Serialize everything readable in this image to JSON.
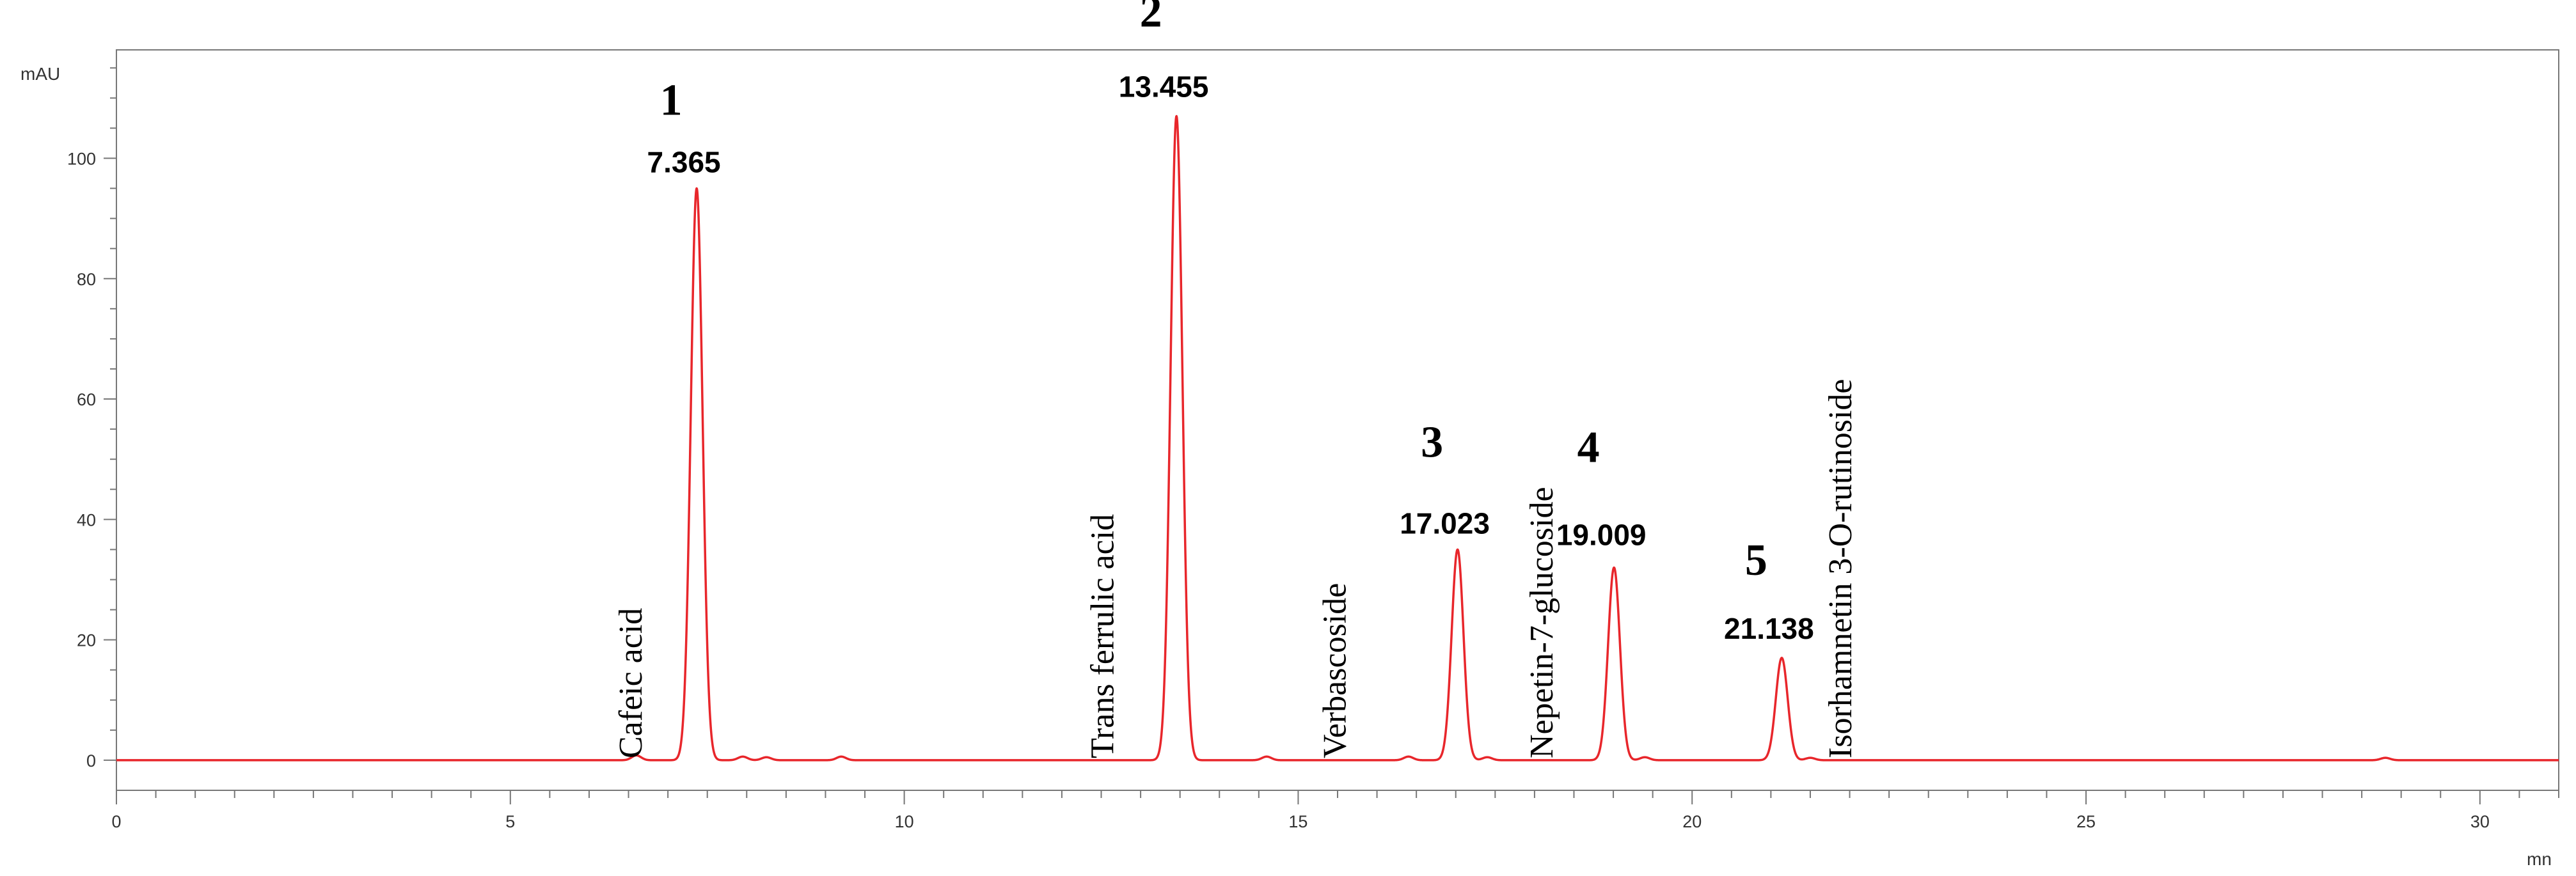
{
  "chart_data": {
    "type": "line",
    "ylabel": "mAU",
    "xlabel": "mn",
    "xlim": [
      0,
      31
    ],
    "ylim": [
      -5,
      118
    ],
    "x_ticks": [
      0,
      5,
      10,
      15,
      20,
      25,
      30
    ],
    "y_ticks": [
      0,
      20,
      40,
      60,
      80,
      100
    ],
    "x_tick_labels": [
      "0",
      "5",
      "10",
      "15",
      "20",
      "25",
      "30"
    ],
    "y_tick_labels": [
      "0",
      "20",
      "40",
      "60",
      "80",
      "100"
    ],
    "grid": false,
    "line_color": "#e8262b",
    "peaks": [
      {
        "number": "1",
        "rt_label": "7.365",
        "rt": 7.365,
        "height": 95,
        "compound": "Cafeic acid"
      },
      {
        "number": "2",
        "rt_label": "13.455",
        "rt": 13.455,
        "height": 107,
        "compound": "Trans ferrulic acid"
      },
      {
        "number": "3",
        "rt_label": "17.023",
        "rt": 17.023,
        "height": 35,
        "compound": "Verbascoside"
      },
      {
        "number": "4",
        "rt_label": "19.009",
        "rt": 19.009,
        "height": 32,
        "compound": "Nepetin-7-glucoside"
      },
      {
        "number": "5",
        "rt_label": "21.138",
        "rt": 21.138,
        "height": 17,
        "compound": "Isorhamnetin 3-O-rutinoside"
      }
    ],
    "minor_peaks": [
      {
        "rt": 6.6,
        "height": 0.8
      },
      {
        "rt": 7.95,
        "height": 0.6
      },
      {
        "rt": 8.25,
        "height": 0.5
      },
      {
        "rt": 9.2,
        "height": 0.6
      },
      {
        "rt": 14.6,
        "height": 0.6
      },
      {
        "rt": 16.4,
        "height": 0.6
      },
      {
        "rt": 17.4,
        "height": 0.5
      },
      {
        "rt": 19.4,
        "height": 0.5
      },
      {
        "rt": 21.5,
        "height": 0.4
      },
      {
        "rt": 28.8,
        "height": 0.4
      }
    ]
  }
}
